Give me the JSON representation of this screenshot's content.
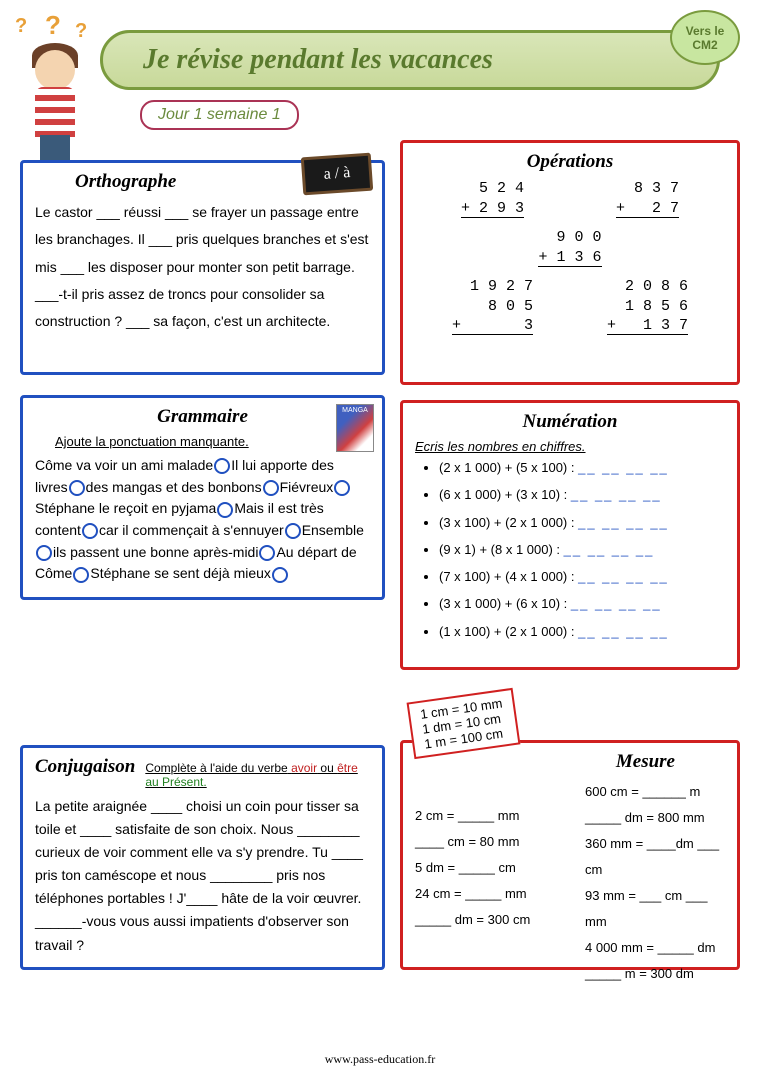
{
  "header": {
    "title": "Je révise pendant les vacances",
    "badge_line1": "Vers le",
    "badge_line2": "CM2",
    "subtitle": "Jour 1 semaine 1"
  },
  "orthographe": {
    "title": "Orthographe",
    "hint": "a / à",
    "text": "Le castor ___ réussi ___ se frayer un passage entre les branchages. Il ___ pris quelques branches et s'est mis ___ les disposer pour monter son petit barrage.\n___-t-il pris assez de troncs pour consolider sa construction ? ___ sa façon, c'est un architecte."
  },
  "operations": {
    "title": "Opérations",
    "problems": [
      {
        "a": "5 2 4",
        "b": "2 9 3"
      },
      {
        "a": "8 3 7",
        "b": "  2 7"
      },
      {
        "a": "9 0 0",
        "b": "1 3 6"
      },
      {
        "a": "1 9 2 7",
        "b": "  8 0 5",
        "c": "      3"
      },
      {
        "a": "2 0 8 6",
        "b": "1 8 5 6",
        "c": "  1 3 7"
      }
    ]
  },
  "grammaire": {
    "title": "Grammaire",
    "instruction": "Ajoute la ponctuation manquante.",
    "manga_label": "MANGA",
    "segments": [
      "Côme va voir un ami malade",
      "Il lui apporte des livres",
      "des mangas et des bonbons",
      "Fiévreux",
      "Stéphane le reçoit en pyjama",
      "Mais   il est très content",
      "car il commençait à s'ennuyer",
      "Ensemble",
      "ils passent une bonne après-midi",
      "Au départ de Côme",
      "Stéphane se sent déjà mieux"
    ]
  },
  "numeration": {
    "title": "Numération",
    "instruction": "Ecris les nombres en chiffres.",
    "items": [
      "(2 x 1 000) + (5 x 100) :",
      "(6 x 1 000) + (3 x 10) :",
      "(3 x 100) + (2 x 1 000) :",
      "(9 x 1) + (8 x 1 000) :",
      "(7 x 100) + (4 x 1 000) :",
      "(3 x 1 000) + (6 x 10) :",
      "(1 x 100) + (2 x 1 000) :"
    ],
    "blanks": "__ __ __ __"
  },
  "conjugaison": {
    "title": "Conjugaison",
    "instr_prefix": "Complète à l'aide du verbe",
    "instr_v1": "avoir",
    "instr_or": " ou ",
    "instr_v2": "être",
    "instr_suffix": " au Présent.",
    "text": "La petite araignée ____ choisi un coin pour tisser sa toile et ____ satisfaite de son choix. Nous ________ curieux de voir comment elle va s'y prendre. Tu ____ pris ton caméscope et nous ________ pris nos téléphones portables ! J'____ hâte de la voir œuvrer. ______-vous vous aussi impatients d'observer son travail ?"
  },
  "mesure": {
    "title": "Mesure",
    "conversions": [
      "1 cm = 10 mm",
      "1 dm = 10 cm",
      "1 m = 100 cm"
    ],
    "col1": [
      "2 cm = _____ mm",
      "____ cm = 80 mm",
      "5 dm = _____ cm",
      "24 cm = _____ mm",
      "_____ dm = 300 cm"
    ],
    "col2": [
      "600 cm = ______ m",
      "_____ dm = 800 mm",
      "360 mm = ____dm ___ cm",
      "93 mm = ___ cm ___ mm",
      "4 000 mm = _____ dm",
      "_____ m = 300 dm"
    ]
  },
  "footer": "www.pass-education.fr"
}
